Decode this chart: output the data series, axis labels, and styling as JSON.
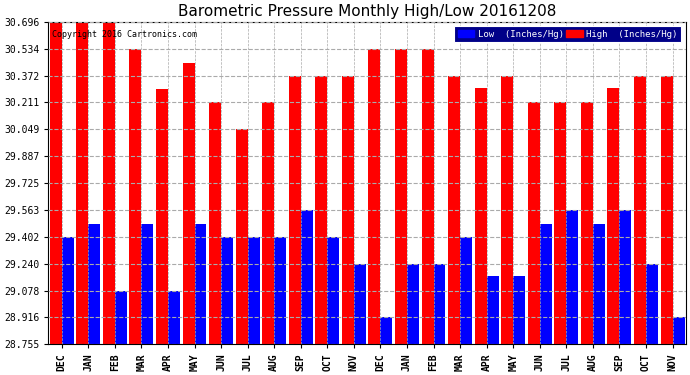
{
  "title": "Barometric Pressure Monthly High/Low 20161208",
  "copyright": "Copyright 2016 Cartronics.com",
  "legend_low": "Low  (Inches/Hg)",
  "legend_high": "High  (Inches/Hg)",
  "months": [
    "DEC",
    "JAN",
    "FEB",
    "MAR",
    "APR",
    "MAY",
    "JUN",
    "JUL",
    "AUG",
    "SEP",
    "OCT",
    "NOV",
    "DEC",
    "JAN",
    "FEB",
    "MAR",
    "APR",
    "MAY",
    "JUN",
    "JUL",
    "AUG",
    "SEP",
    "OCT",
    "NOV"
  ],
  "high_values": [
    30.696,
    30.696,
    30.696,
    30.534,
    30.29,
    30.45,
    30.211,
    30.049,
    30.211,
    30.372,
    30.372,
    30.372,
    30.534,
    30.534,
    30.534,
    30.372,
    30.296,
    30.372,
    30.211,
    30.211,
    30.211,
    30.296,
    30.372,
    30.372
  ],
  "low_values": [
    29.402,
    29.48,
    29.078,
    29.48,
    29.078,
    29.48,
    29.402,
    29.402,
    29.402,
    29.563,
    29.402,
    29.24,
    28.916,
    29.24,
    29.24,
    29.402,
    29.163,
    29.163,
    29.48,
    29.563,
    29.48,
    29.563,
    29.24,
    28.916
  ],
  "yticks": [
    28.755,
    28.916,
    29.078,
    29.24,
    29.402,
    29.563,
    29.725,
    29.887,
    30.049,
    30.211,
    30.372,
    30.534,
    30.696
  ],
  "ymin": 28.755,
  "ymax": 30.696,
  "bar_color_high": "#ff0000",
  "bar_color_low": "#0000ff",
  "background_color": "#ffffff",
  "grid_color": "#aaaaaa",
  "title_fontsize": 11,
  "tick_fontsize": 7,
  "xlabel_fontsize": 7
}
